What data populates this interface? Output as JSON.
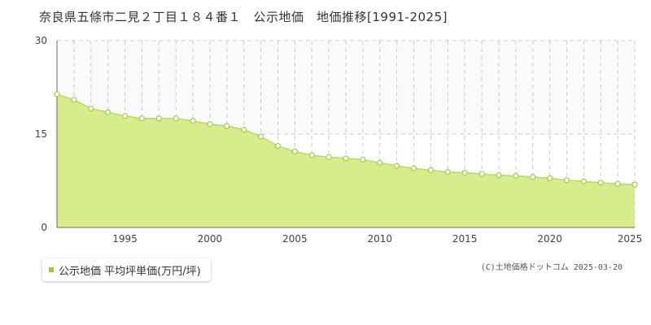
{
  "chart_data": {
    "type": "area",
    "title": "奈良県五條市二見２丁目１８４番１　公示地価　地価推移[1991-2025]",
    "xlabel": "",
    "ylabel": "",
    "xlim": [
      1991,
      2025
    ],
    "ylim": [
      0,
      30
    ],
    "y_ticks": [
      0,
      15,
      30
    ],
    "x_ticks": [
      1995,
      2000,
      2005,
      2010,
      2015,
      2020,
      2025
    ],
    "grid": true,
    "legend_position": "bottom-left",
    "colors": {
      "fill": "#d8ec8c",
      "line": "#b9dc5a",
      "point_stroke": "#a6cc3c",
      "swatch": "#9acd32"
    },
    "series": [
      {
        "name": "公示地価 平均坪単価(万円/坪)",
        "x": [
          1991,
          1992,
          1993,
          1994,
          1995,
          1996,
          1997,
          1998,
          1999,
          2000,
          2001,
          2002,
          2003,
          2004,
          2005,
          2006,
          2007,
          2008,
          2009,
          2010,
          2011,
          2012,
          2013,
          2014,
          2015,
          2016,
          2017,
          2018,
          2019,
          2020,
          2021,
          2022,
          2023,
          2024,
          2025
        ],
        "values": [
          21.4,
          20.5,
          19.1,
          18.5,
          17.9,
          17.5,
          17.5,
          17.5,
          17.1,
          16.6,
          16.3,
          15.7,
          14.6,
          13.1,
          12.2,
          11.6,
          11.3,
          11.1,
          10.9,
          10.4,
          9.9,
          9.5,
          9.2,
          8.9,
          8.8,
          8.6,
          8.4,
          8.3,
          8.1,
          7.9,
          7.6,
          7.4,
          7.2,
          7.0,
          6.9
        ]
      }
    ]
  },
  "copyright": "(C)土地価格ドットコム 2025-03-20"
}
